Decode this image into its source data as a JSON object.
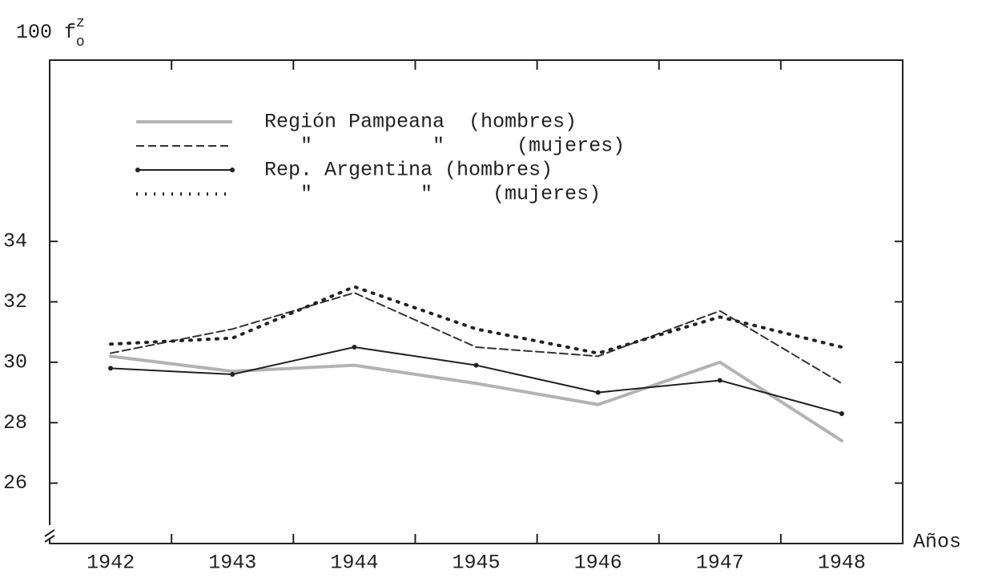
{
  "chart_data": {
    "type": "line",
    "y_label": {
      "base": "100 f",
      "sup": "z",
      "sub": "o"
    },
    "x_label": "Años",
    "x": [
      1942,
      1943,
      1944,
      1945,
      1946,
      1947,
      1948
    ],
    "xlim": [
      1941.5,
      1948.5
    ],
    "xticks": [
      1942,
      1943,
      1944,
      1945,
      1946,
      1947,
      1948
    ],
    "xminorticks": [
      1942.5,
      1943.5,
      1944.5,
      1945.5,
      1946.5,
      1947.5
    ],
    "ylim": [
      24,
      40
    ],
    "yticks": [
      26,
      28,
      30,
      32,
      34
    ],
    "legend": "upper left",
    "series": [
      {
        "name": "Región Pampeana  (hombres)",
        "color": "#9a9a9a",
        "style": "solid",
        "values": [
          30.2,
          29.7,
          29.9,
          29.3,
          28.6,
          30.0,
          27.4
        ]
      },
      {
        "name": "   \"          \"      (mujeres)",
        "color": "#333333",
        "style": "dashed",
        "values": [
          30.3,
          31.1,
          32.3,
          30.5,
          30.2,
          31.7,
          29.3
        ]
      },
      {
        "name": "Rep. Argentina (hombres)",
        "color": "#222222",
        "style": "dotline",
        "values": [
          29.8,
          29.6,
          30.5,
          29.9,
          29.0,
          29.4,
          28.3
        ]
      },
      {
        "name": "   \"         \"     (mujeres)",
        "color": "#222222",
        "style": "dotted",
        "values": [
          30.6,
          30.8,
          32.5,
          31.1,
          30.3,
          31.5,
          30.5
        ]
      }
    ]
  }
}
